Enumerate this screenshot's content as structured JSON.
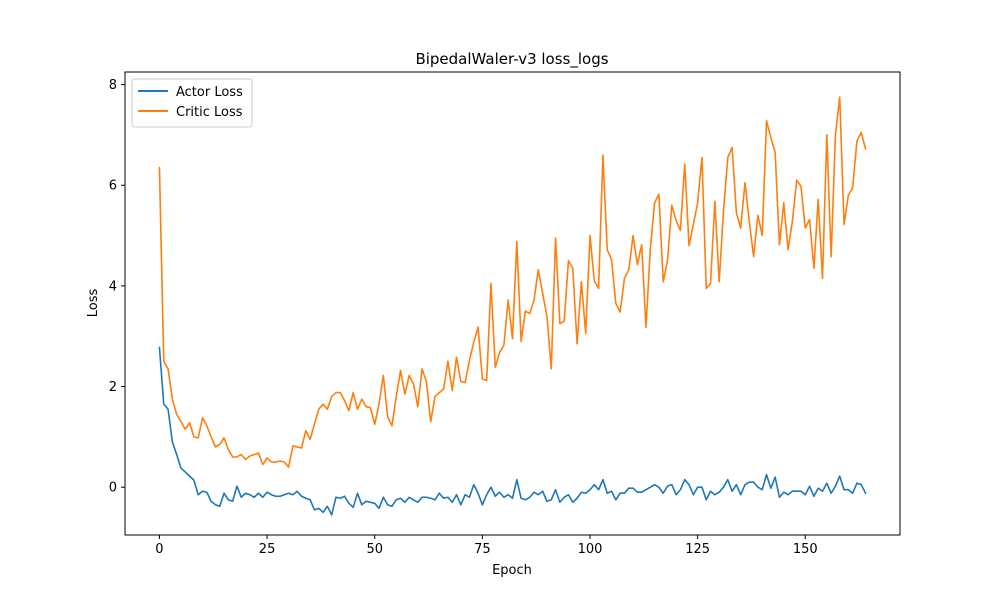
{
  "chart_data": {
    "type": "line",
    "title": "BipedalWaler-v3 loss_logs",
    "xlabel": "Epoch",
    "ylabel": "Loss",
    "xlim": [
      -8,
      172
    ],
    "ylim": [
      -0.95,
      8.25
    ],
    "xticks": [
      0,
      25,
      50,
      75,
      100,
      125,
      150
    ],
    "yticks": [
      0,
      2,
      4,
      6,
      8
    ],
    "grid": false,
    "legend_position": "upper-left",
    "series": [
      {
        "name": "Actor Loss",
        "color": "#1f77b4",
        "values": [
          2.78,
          1.65,
          1.55,
          0.9,
          0.65,
          0.38,
          0.3,
          0.22,
          0.14,
          -0.15,
          -0.08,
          -0.1,
          -0.28,
          -0.35,
          -0.38,
          -0.12,
          -0.25,
          -0.28,
          0.02,
          -0.2,
          -0.12,
          -0.15,
          -0.2,
          -0.12,
          -0.2,
          -0.1,
          -0.15,
          -0.18,
          -0.18,
          -0.15,
          -0.12,
          -0.15,
          -0.08,
          -0.18,
          -0.22,
          -0.25,
          -0.45,
          -0.42,
          -0.5,
          -0.38,
          -0.55,
          -0.2,
          -0.22,
          -0.18,
          -0.32,
          -0.4,
          -0.12,
          -0.35,
          -0.28,
          -0.3,
          -0.32,
          -0.42,
          -0.2,
          -0.35,
          -0.38,
          -0.25,
          -0.22,
          -0.3,
          -0.2,
          -0.25,
          -0.3,
          -0.2,
          -0.2,
          -0.22,
          -0.25,
          -0.12,
          -0.22,
          -0.2,
          -0.3,
          -0.15,
          -0.35,
          -0.15,
          -0.2,
          0.05,
          -0.12,
          -0.35,
          -0.15,
          0.0,
          -0.18,
          -0.1,
          -0.2,
          -0.15,
          -0.22,
          0.15,
          -0.22,
          -0.25,
          -0.2,
          -0.1,
          -0.15,
          -0.08,
          -0.28,
          -0.25,
          -0.05,
          -0.3,
          -0.2,
          -0.15,
          -0.3,
          -0.22,
          -0.1,
          -0.12,
          -0.05,
          0.05,
          -0.05,
          0.15,
          -0.12,
          -0.08,
          -0.25,
          -0.12,
          -0.12,
          -0.02,
          -0.02,
          -0.1,
          -0.1,
          -0.05,
          0.0,
          0.05,
          0.0,
          -0.12,
          0.02,
          0.05,
          -0.15,
          -0.05,
          0.15,
          0.05,
          -0.15,
          0.0,
          0.0,
          -0.25,
          -0.08,
          -0.15,
          -0.1,
          0.0,
          0.15,
          -0.08,
          0.05,
          -0.15,
          0.05,
          0.1,
          0.1,
          0.0,
          -0.05,
          0.25,
          -0.02,
          0.2,
          -0.2,
          -0.1,
          -0.15,
          -0.08,
          -0.08,
          -0.08,
          -0.15,
          0.02,
          -0.18,
          -0.02,
          -0.08,
          0.08,
          -0.12,
          0.02,
          0.22,
          -0.05,
          -0.05,
          -0.12,
          0.08,
          0.05,
          -0.12
        ]
      },
      {
        "name": "Critic Loss",
        "color": "#ff7f0e",
        "values": [
          6.35,
          2.5,
          2.35,
          1.75,
          1.45,
          1.3,
          1.15,
          1.28,
          1.0,
          0.98,
          1.38,
          1.22,
          1.0,
          0.8,
          0.85,
          0.98,
          0.75,
          0.6,
          0.6,
          0.65,
          0.55,
          0.62,
          0.65,
          0.68,
          0.45,
          0.58,
          0.5,
          0.5,
          0.52,
          0.5,
          0.4,
          0.82,
          0.8,
          0.78,
          1.12,
          0.95,
          1.25,
          1.55,
          1.65,
          1.55,
          1.8,
          1.88,
          1.88,
          1.72,
          1.52,
          1.88,
          1.55,
          1.75,
          1.6,
          1.58,
          1.25,
          1.65,
          2.22,
          1.4,
          1.22,
          1.8,
          2.32,
          1.85,
          2.22,
          2.05,
          1.6,
          2.35,
          2.1,
          1.3,
          1.8,
          1.88,
          1.95,
          2.5,
          1.92,
          2.58,
          2.1,
          2.08,
          2.52,
          2.88,
          3.18,
          2.15,
          2.12,
          4.05,
          2.38,
          2.68,
          2.82,
          3.72,
          2.95,
          4.88,
          2.9,
          3.5,
          3.45,
          3.72,
          4.32,
          3.85,
          3.4,
          2.35,
          4.95,
          3.25,
          3.3,
          4.5,
          4.35,
          2.85,
          4.08,
          3.05,
          5.0,
          4.1,
          3.95,
          6.6,
          4.72,
          4.52,
          3.65,
          3.48,
          4.15,
          4.32,
          5.0,
          4.42,
          4.82,
          3.18,
          4.72,
          5.65,
          5.82,
          4.08,
          4.5,
          5.6,
          5.3,
          5.1,
          6.42,
          4.8,
          5.22,
          5.65,
          6.55,
          3.95,
          4.05,
          5.68,
          4.08,
          5.48,
          6.55,
          6.75,
          5.45,
          5.15,
          6.05,
          5.28,
          4.58,
          5.4,
          5.0,
          7.28,
          6.95,
          6.65,
          4.82,
          5.65,
          4.72,
          5.28,
          6.1,
          5.98,
          5.15,
          5.32,
          4.35,
          5.72,
          4.15,
          7.0,
          4.58,
          7.0,
          7.75,
          5.22,
          5.8,
          5.95,
          6.88,
          7.05,
          6.72
        ]
      }
    ]
  }
}
